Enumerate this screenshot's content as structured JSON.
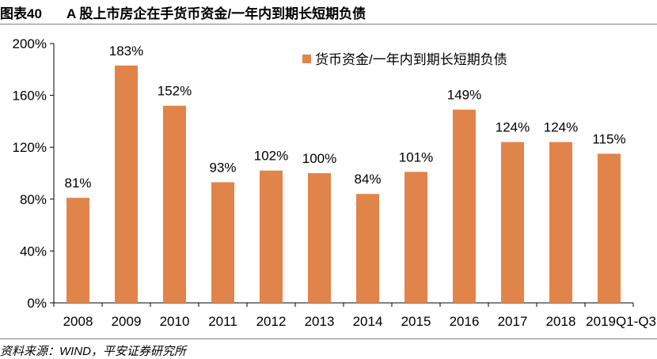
{
  "header": {
    "figure_number": "图表40",
    "title": "A 股上市房企在手货币资金/一年内到期长短期负债"
  },
  "footer": {
    "source": "资料来源：WIND，平安证券研究所"
  },
  "chart_data": {
    "type": "bar",
    "categories": [
      "2008",
      "2009",
      "2010",
      "2011",
      "2012",
      "2013",
      "2014",
      "2015",
      "2016",
      "2017",
      "2018",
      "2019Q1-Q3"
    ],
    "series": [
      {
        "name": "货币资金/一年内到期长短期负债",
        "values": [
          81,
          183,
          152,
          93,
          102,
          100,
          84,
          101,
          149,
          124,
          124,
          115
        ],
        "data_labels": [
          "81%",
          "183%",
          "152%",
          "93%",
          "102%",
          "100%",
          "84%",
          "101%",
          "149%",
          "124%",
          "124%",
          "115%"
        ],
        "color": "#E0844A"
      }
    ],
    "yticks": [
      "0%",
      "40%",
      "80%",
      "120%",
      "160%",
      "200%"
    ],
    "ytick_values": [
      0,
      40,
      80,
      120,
      160,
      200
    ],
    "ylim": [
      0,
      200
    ],
    "grid": false,
    "legend_position": "top-right"
  }
}
